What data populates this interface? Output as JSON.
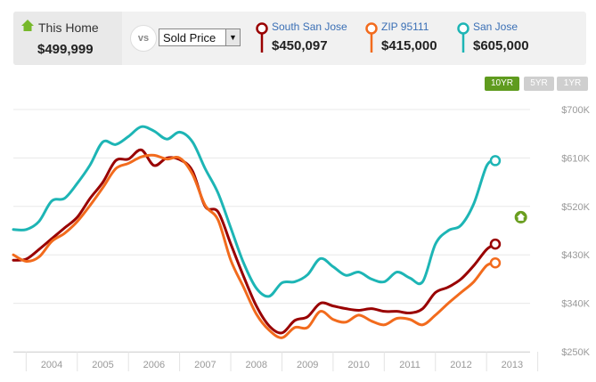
{
  "header": {
    "this_home_label": "This Home",
    "this_home_value": "$499,999",
    "vs_label": "vs",
    "metric_select": "Sold Price",
    "compare": [
      {
        "name": "South San Jose",
        "value": "$450,097",
        "color": "#990000"
      },
      {
        "name": "ZIP 95111",
        "value": "$415,000",
        "color": "#f26b1d"
      },
      {
        "name": "San Jose",
        "value": "$605,000",
        "color": "#1db5b5"
      }
    ]
  },
  "range_buttons": [
    {
      "label": "10YR",
      "active": true
    },
    {
      "label": "5YR",
      "active": false
    },
    {
      "label": "1YR",
      "active": false
    }
  ],
  "colors": {
    "accent_green": "#6a9e1f",
    "home_icon": "#76b82a",
    "grid": "#e8e8e8",
    "axis_text": "#999999"
  },
  "chart_data": {
    "type": "line",
    "x_tick_labels": [
      "2004",
      "2005",
      "2006",
      "2007",
      "2008",
      "2009",
      "2010",
      "2011",
      "2012",
      "2013"
    ],
    "y_tick_labels": [
      "$700K",
      "$610K",
      "$520K",
      "$430K",
      "$340K",
      "$250K"
    ],
    "ylim": [
      250,
      700
    ],
    "xlim": [
      2003.25,
      2013.35
    ],
    "y_unit": "thousand USD",
    "grid": true,
    "this_home_marker": {
      "x": 2013.17,
      "y": 500
    },
    "series": [
      {
        "name": "San Jose",
        "color": "#1db5b5",
        "points": [
          [
            2003.25,
            477
          ],
          [
            2003.5,
            477
          ],
          [
            2003.75,
            492
          ],
          [
            2004.0,
            530
          ],
          [
            2004.25,
            535
          ],
          [
            2004.5,
            563
          ],
          [
            2004.75,
            597
          ],
          [
            2005.0,
            640
          ],
          [
            2005.25,
            635
          ],
          [
            2005.5,
            650
          ],
          [
            2005.75,
            668
          ],
          [
            2006.0,
            660
          ],
          [
            2006.25,
            645
          ],
          [
            2006.5,
            658
          ],
          [
            2006.75,
            640
          ],
          [
            2007.0,
            590
          ],
          [
            2007.25,
            545
          ],
          [
            2007.5,
            480
          ],
          [
            2007.75,
            415
          ],
          [
            2008.0,
            368
          ],
          [
            2008.25,
            353
          ],
          [
            2008.5,
            378
          ],
          [
            2008.75,
            380
          ],
          [
            2009.0,
            393
          ],
          [
            2009.25,
            423
          ],
          [
            2009.5,
            408
          ],
          [
            2009.75,
            392
          ],
          [
            2010.0,
            398
          ],
          [
            2010.25,
            385
          ],
          [
            2010.5,
            380
          ],
          [
            2010.75,
            398
          ],
          [
            2011.0,
            387
          ],
          [
            2011.25,
            380
          ],
          [
            2011.5,
            450
          ],
          [
            2011.75,
            475
          ],
          [
            2012.0,
            485
          ],
          [
            2012.25,
            525
          ],
          [
            2012.5,
            595
          ],
          [
            2012.67,
            605
          ]
        ]
      },
      {
        "name": "South San Jose",
        "color": "#990000",
        "points": [
          [
            2003.25,
            420
          ],
          [
            2003.5,
            422
          ],
          [
            2003.75,
            440
          ],
          [
            2004.0,
            460
          ],
          [
            2004.25,
            480
          ],
          [
            2004.5,
            500
          ],
          [
            2004.75,
            535
          ],
          [
            2005.0,
            565
          ],
          [
            2005.25,
            605
          ],
          [
            2005.5,
            608
          ],
          [
            2005.75,
            625
          ],
          [
            2006.0,
            596
          ],
          [
            2006.25,
            610
          ],
          [
            2006.5,
            607
          ],
          [
            2006.75,
            586
          ],
          [
            2007.0,
            520
          ],
          [
            2007.25,
            510
          ],
          [
            2007.5,
            450
          ],
          [
            2007.75,
            390
          ],
          [
            2008.0,
            335
          ],
          [
            2008.25,
            298
          ],
          [
            2008.5,
            285
          ],
          [
            2008.75,
            308
          ],
          [
            2009.0,
            315
          ],
          [
            2009.25,
            340
          ],
          [
            2009.5,
            335
          ],
          [
            2009.75,
            330
          ],
          [
            2010.0,
            327
          ],
          [
            2010.25,
            330
          ],
          [
            2010.5,
            325
          ],
          [
            2010.75,
            325
          ],
          [
            2011.0,
            322
          ],
          [
            2011.25,
            330
          ],
          [
            2011.5,
            360
          ],
          [
            2011.75,
            370
          ],
          [
            2012.0,
            385
          ],
          [
            2012.25,
            410
          ],
          [
            2012.5,
            440
          ],
          [
            2012.67,
            450
          ]
        ]
      },
      {
        "name": "ZIP 95111",
        "color": "#f26b1d",
        "points": [
          [
            2003.25,
            430
          ],
          [
            2003.5,
            418
          ],
          [
            2003.75,
            426
          ],
          [
            2004.0,
            455
          ],
          [
            2004.25,
            470
          ],
          [
            2004.5,
            492
          ],
          [
            2004.75,
            522
          ],
          [
            2005.0,
            555
          ],
          [
            2005.25,
            590
          ],
          [
            2005.5,
            600
          ],
          [
            2005.75,
            612
          ],
          [
            2006.0,
            615
          ],
          [
            2006.25,
            608
          ],
          [
            2006.5,
            610
          ],
          [
            2006.75,
            580
          ],
          [
            2007.0,
            522
          ],
          [
            2007.25,
            495
          ],
          [
            2007.5,
            420
          ],
          [
            2007.75,
            370
          ],
          [
            2008.0,
            320
          ],
          [
            2008.25,
            290
          ],
          [
            2008.5,
            276
          ],
          [
            2008.75,
            295
          ],
          [
            2009.0,
            295
          ],
          [
            2009.25,
            325
          ],
          [
            2009.5,
            310
          ],
          [
            2009.75,
            305
          ],
          [
            2010.0,
            318
          ],
          [
            2010.25,
            307
          ],
          [
            2010.5,
            300
          ],
          [
            2010.75,
            312
          ],
          [
            2011.0,
            310
          ],
          [
            2011.25,
            300
          ],
          [
            2011.5,
            318
          ],
          [
            2011.75,
            340
          ],
          [
            2012.0,
            360
          ],
          [
            2012.25,
            380
          ],
          [
            2012.5,
            410
          ],
          [
            2012.67,
            415
          ]
        ]
      }
    ]
  }
}
